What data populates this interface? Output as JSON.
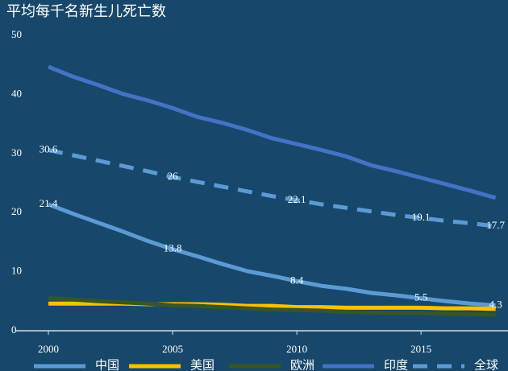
{
  "chart_data": {
    "type": "line",
    "title": "平均每千名新生儿死亡数",
    "x": [
      2000,
      2001,
      2002,
      2003,
      2004,
      2005,
      2006,
      2007,
      2008,
      2009,
      2010,
      2011,
      2012,
      2013,
      2014,
      2015,
      2016,
      2017,
      2018
    ],
    "xlim": [
      1998.7,
      2018.5
    ],
    "xticks": [
      2000,
      2005,
      2010,
      2015
    ],
    "ylim": [
      0,
      50
    ],
    "yticks": [
      0,
      10,
      20,
      30,
      40,
      50
    ],
    "series": [
      {
        "name": "中国",
        "color": "#5b9bd5",
        "dashed": false,
        "values": [
          21.4,
          19.8,
          18.3,
          16.8,
          15.2,
          13.8,
          12.6,
          11.3,
          10.1,
          9.3,
          8.4,
          7.6,
          7.1,
          6.4,
          6.0,
          5.5,
          5.0,
          4.6,
          4.3
        ],
        "value_labels": [
          "21.4",
          null,
          null,
          null,
          null,
          "13.8",
          null,
          null,
          null,
          null,
          "8.4",
          null,
          null,
          null,
          null,
          "5.5",
          null,
          null,
          "4.3"
        ]
      },
      {
        "name": "美国",
        "color": "#ffc000",
        "dashed": false,
        "values": [
          4.6,
          4.6,
          4.6,
          4.6,
          4.5,
          4.5,
          4.5,
          4.4,
          4.2,
          4.2,
          4.0,
          4.0,
          3.9,
          3.9,
          3.9,
          3.9,
          3.8,
          3.8,
          3.7
        ]
      },
      {
        "name": "欧洲",
        "color": "#375623",
        "dashed": false,
        "values": [
          5.5,
          5.3,
          5.0,
          4.8,
          4.6,
          4.3,
          4.2,
          4.0,
          3.8,
          3.6,
          3.5,
          3.4,
          3.2,
          3.1,
          3.0,
          3.0,
          2.9,
          2.8,
          2.7
        ]
      },
      {
        "name": "印度",
        "color": "#4472c4",
        "dashed": false,
        "values": [
          44.7,
          43.0,
          41.6,
          40.1,
          39.0,
          37.7,
          36.2,
          35.2,
          34.0,
          32.6,
          31.6,
          30.6,
          29.5,
          28.0,
          27.0,
          25.9,
          24.8,
          23.7,
          22.5
        ]
      },
      {
        "name": "全球",
        "color": "#5b9bd5",
        "dashed": true,
        "values": [
          30.6,
          29.7,
          28.8,
          27.9,
          27.0,
          26,
          25.2,
          24.4,
          23.6,
          22.8,
          22.1,
          21.4,
          20.8,
          20.2,
          19.6,
          19.1,
          18.6,
          18.2,
          17.7
        ],
        "value_labels": [
          "30.6",
          null,
          null,
          null,
          null,
          "26",
          null,
          null,
          null,
          null,
          "22.1",
          null,
          null,
          null,
          null,
          "19.1",
          null,
          null,
          "17.7"
        ]
      }
    ]
  }
}
